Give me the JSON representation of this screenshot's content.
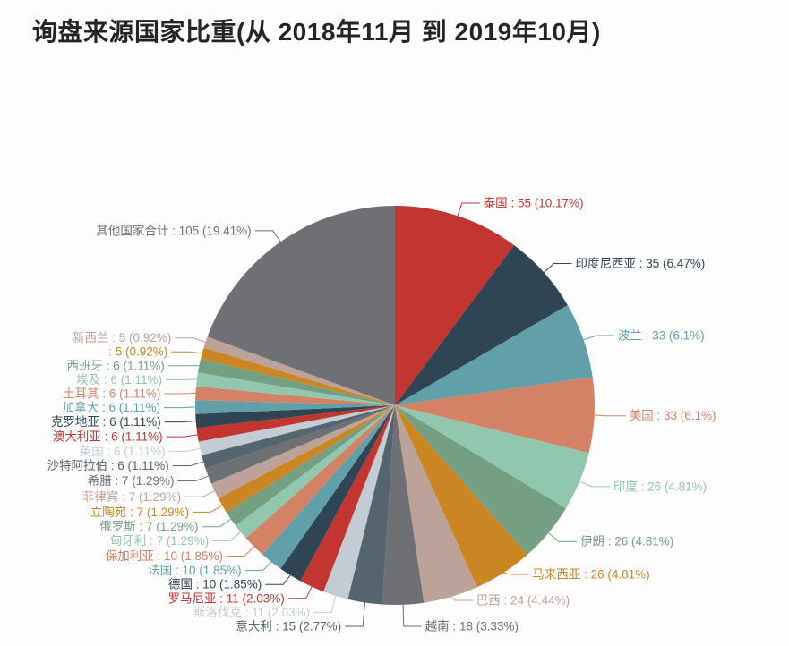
{
  "chart_data": {
    "type": "pie",
    "title": "询盘来源国家比重(从 2018年11月 到 2019年10月)",
    "total": 541,
    "label_format": "{name} : {value} ({pct}%)",
    "start_angle_deg": 90,
    "clockwise": true,
    "legend": "none",
    "slices": [
      {
        "name": "泰国",
        "value": 55,
        "pct": "10.17",
        "color": "#c23531"
      },
      {
        "name": "印度尼西亚",
        "value": 35,
        "pct": "6.47",
        "color": "#2f4554"
      },
      {
        "name": "波兰",
        "value": 33,
        "pct": "6.1",
        "color": "#61a0a8"
      },
      {
        "name": "美国",
        "value": 33,
        "pct": "6.1",
        "color": "#d48265"
      },
      {
        "name": "印度",
        "value": 26,
        "pct": "4.81",
        "color": "#91c7ae"
      },
      {
        "name": "伊朗",
        "value": 26,
        "pct": "4.81",
        "color": "#749f83"
      },
      {
        "name": "马来西亚",
        "value": 26,
        "pct": "4.81",
        "color": "#ca8622"
      },
      {
        "name": "巴西",
        "value": 24,
        "pct": "4.44",
        "color": "#bda29a"
      },
      {
        "name": "越南",
        "value": 18,
        "pct": "3.33",
        "color": "#6e7074"
      },
      {
        "name": "意大利",
        "value": 15,
        "pct": "2.77",
        "color": "#546570"
      },
      {
        "name": "斯洛伐克",
        "value": 11,
        "pct": "2.03",
        "color": "#c4ccd3"
      },
      {
        "name": "罗马尼亚",
        "value": 11,
        "pct": "2.03",
        "color": "#c23531"
      },
      {
        "name": "德国",
        "value": 10,
        "pct": "1.85",
        "color": "#2f4554"
      },
      {
        "name": "法国",
        "value": 10,
        "pct": "1.85",
        "color": "#61a0a8"
      },
      {
        "name": "保加利亚",
        "value": 10,
        "pct": "1.85",
        "color": "#d48265"
      },
      {
        "name": "匈牙利",
        "value": 7,
        "pct": "1.29",
        "color": "#91c7ae"
      },
      {
        "name": "俄罗斯",
        "value": 7,
        "pct": "1.29",
        "color": "#749f83"
      },
      {
        "name": "立陶宛",
        "value": 7,
        "pct": "1.29",
        "color": "#ca8622"
      },
      {
        "name": "菲律宾",
        "value": 7,
        "pct": "1.29",
        "color": "#bda29a"
      },
      {
        "name": "希腊",
        "value": 7,
        "pct": "1.29",
        "color": "#6e7074"
      },
      {
        "name": "沙特阿拉伯",
        "value": 6,
        "pct": "1.11",
        "color": "#546570"
      },
      {
        "name": "英国",
        "value": 6,
        "pct": "1.11",
        "color": "#c4ccd3"
      },
      {
        "name": "澳大利亚",
        "value": 6,
        "pct": "1.11",
        "color": "#c23531"
      },
      {
        "name": "克罗地亚",
        "value": 6,
        "pct": "1.11",
        "color": "#2f4554"
      },
      {
        "name": "加拿大",
        "value": 6,
        "pct": "1.11",
        "color": "#61a0a8"
      },
      {
        "name": "土耳其",
        "value": 6,
        "pct": "1.11",
        "color": "#d48265"
      },
      {
        "name": "埃及",
        "value": 6,
        "pct": "1.11",
        "color": "#91c7ae"
      },
      {
        "name": "西班牙",
        "value": 6,
        "pct": "1.11",
        "color": "#749f83"
      },
      {
        "name": "",
        "value": 5,
        "pct": "0.92",
        "color": "#ca8622"
      },
      {
        "name": "新西兰",
        "value": 5,
        "pct": "0.92",
        "color": "#bda29a"
      },
      {
        "name": "其他国家合计",
        "value": 105,
        "pct": "19.41",
        "color": "#6e7074"
      }
    ]
  }
}
